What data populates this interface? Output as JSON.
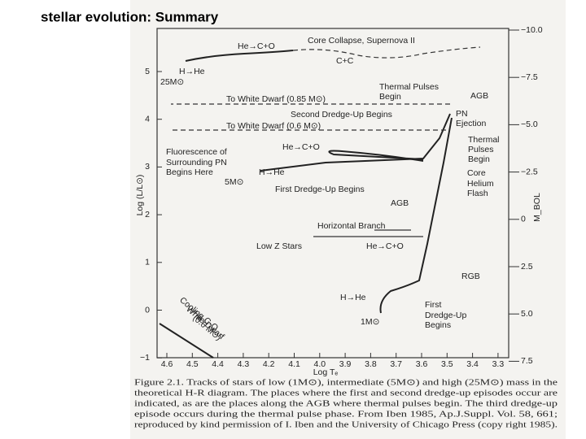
{
  "title": "stellar evolution: Summary",
  "figure": {
    "y_label": "Log (L/L⊙)",
    "x_label": "Log Tₑ",
    "right_label": "M_BOL",
    "y_ticks": [
      "5",
      "4",
      "3",
      "2",
      "1",
      "0",
      "−1"
    ],
    "x_ticks": [
      "4.6",
      "4.5",
      "4.4",
      "4.3",
      "4.2",
      "4.1",
      "4.0",
      "3.9",
      "3.8",
      "3.7",
      "3.6",
      "3.5",
      "3.4",
      "3.3"
    ],
    "right_ticks": [
      "−10.0",
      "−7.5",
      "−5.0",
      "−2.5",
      "0",
      "2.5",
      "5.0",
      "7.5"
    ],
    "labels": [
      "He→C+O",
      "Core Collapse, Supernova II",
      "C+C",
      "H→He",
      "25M⊙",
      "Thermal Pulses",
      "Begin",
      "AGB",
      "To White Dwarf (0.85 M⊙)",
      "PN",
      "Ejection",
      "Second Dredge-Up Begins",
      "To White Dwarf (0.6 M⊙)",
      "Thermal",
      "Pulses",
      "Begin",
      "He→C+O",
      "Fluorescence of",
      "Surrounding PN",
      "Begins Here",
      "H→He",
      "Core",
      "Helium",
      "Flash",
      "5M⊙",
      "First Dredge-Up Begins",
      "AGB",
      "Horizontal Branch",
      "Low Z Stars",
      "He→C+O",
      "RGB",
      "H→He",
      "First",
      "Dredge-Up",
      "Begins",
      "1M⊙"
    ],
    "cooling_labels": [
      "Cooling C-O",
      "White Dwarf",
      "(0.6 M⊙)"
    ],
    "caption": [
      "Figure 2.1.   Tracks of stars of low (1M⊙), intermediate (5M⊙) and high (25M⊙) mass in the",
      "theoretical H-R diagram. The places where the first and second dredge-up episodes occur are",
      "indicated, as are the places along the AGB where thermal pulses begin. The third dredge-up",
      "episode occurs during the thermal pulse phase. From Iben 1985, Ap.J.Suppl. Vol. 58, 661;",
      "reproduced by kind permission of I. Iben and the University of Chicago Press (copy right 1985)."
    ]
  }
}
